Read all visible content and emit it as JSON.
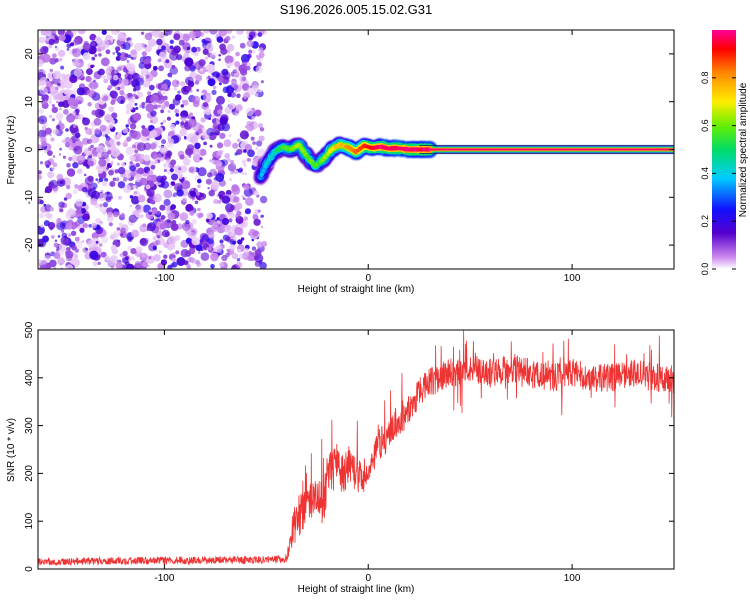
{
  "figure_title": "S196.2026.005.15.02.G31",
  "chart_data": [
    {
      "type": "heatmap",
      "title": "S196.2026.005.15.02.G31",
      "xlabel": "Height of straight line (km)",
      "ylabel": "Frequency (Hz)",
      "xlim": [
        -162,
        150
      ],
      "ylim": [
        -25,
        25
      ],
      "x_ticks": [
        -100,
        0,
        100
      ],
      "x_tick_labels": [
        "-100",
        "0",
        "100"
      ],
      "y_ticks": [
        20,
        10,
        0,
        -10,
        -20
      ],
      "y_tick_labels": [
        "20",
        "10",
        "0",
        "-10",
        "-20"
      ],
      "noise_region_x_max": -52,
      "signal_trace": {
        "x": [
          -53,
          -50,
          -46,
          -42,
          -38,
          -34,
          -30,
          -26,
          -22,
          -18,
          -14,
          -10,
          -6,
          -2,
          2,
          6,
          10,
          14,
          20,
          30,
          50,
          80,
          110,
          140,
          150
        ],
        "freq": [
          -6,
          -3,
          -0.5,
          0.5,
          0,
          1,
          -1.5,
          -3.5,
          -2,
          0,
          1,
          0.5,
          -0.5,
          0.8,
          0.3,
          0.6,
          0.2,
          0.3,
          0,
          0,
          0,
          0,
          0,
          0,
          0
        ],
        "amplitude": [
          0.35,
          0.4,
          0.45,
          0.55,
          0.6,
          0.65,
          0.6,
          0.55,
          0.6,
          0.7,
          0.75,
          0.8,
          0.85,
          0.9,
          0.95,
          0.95,
          0.97,
          0.98,
          0.98,
          0.98,
          0.98,
          0.98,
          0.98,
          0.98,
          0.98
        ]
      },
      "colorbar": {
        "label": "Normalized spectral amplitude",
        "range": [
          0,
          1
        ],
        "ticks": [
          0.0,
          0.2,
          0.4,
          0.6,
          0.8
        ],
        "tick_labels": [
          "0.0",
          "0.2",
          "0.4",
          "0.6",
          "0.8"
        ]
      }
    },
    {
      "type": "line",
      "xlabel": "Height of straight line (km)",
      "ylabel": "SNR (10 * v/v)",
      "xlim": [
        -162,
        150
      ],
      "ylim": [
        0,
        500
      ],
      "x_ticks": [
        -100,
        0,
        100
      ],
      "x_tick_labels": [
        "-100",
        "0",
        "100"
      ],
      "y_ticks": [
        0,
        100,
        200,
        300,
        400,
        500
      ],
      "y_tick_labels": [
        "0",
        "100",
        "200",
        "300",
        "400",
        "500"
      ],
      "series": [
        {
          "name": "SNR",
          "color": "#ee3333",
          "x": [
            -162,
            -140,
            -120,
            -100,
            -80,
            -60,
            -45,
            -40,
            -38,
            -35,
            -32,
            -30,
            -25,
            -22,
            -20,
            -15,
            -12,
            -10,
            -5,
            0,
            5,
            10,
            15,
            20,
            25,
            30,
            40,
            50,
            60,
            70,
            80,
            90,
            100,
            110,
            120,
            130,
            140,
            150
          ],
          "mean": [
            15,
            16,
            17,
            18,
            18,
            19,
            20,
            22,
            70,
            110,
            120,
            140,
            150,
            130,
            200,
            210,
            190,
            220,
            190,
            200,
            260,
            280,
            310,
            330,
            370,
            390,
            410,
            420,
            410,
            420,
            410,
            400,
            410,
            400,
            400,
            410,
            400,
            395
          ],
          "noise": [
            8,
            8,
            8,
            8,
            8,
            8,
            8,
            10,
            35,
            50,
            40,
            40,
            40,
            50,
            45,
            45,
            45,
            40,
            35,
            35,
            35,
            35,
            35,
            35,
            30,
            30,
            30,
            30,
            30,
            30,
            30,
            30,
            30,
            30,
            30,
            30,
            30,
            30
          ]
        }
      ]
    }
  ]
}
